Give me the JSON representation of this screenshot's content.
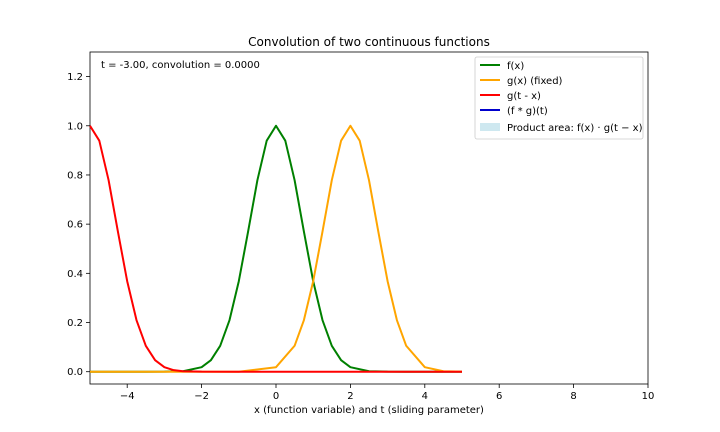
{
  "chart_data": {
    "type": "line",
    "title": "Convolution of two continuous functions",
    "xlabel": "x (function variable) and t (sliding parameter)",
    "ylabel": "",
    "xlim": [
      -5,
      10
    ],
    "ylim": [
      -0.05,
      1.3
    ],
    "xticks": [
      -4,
      -2,
      0,
      2,
      4,
      6,
      8,
      10
    ],
    "yticks": [
      0.0,
      0.2,
      0.4,
      0.6,
      0.8,
      1.0,
      1.2
    ],
    "xtick_labels": [
      "−4",
      "−2",
      "0",
      "2",
      "4",
      "6",
      "8",
      "10"
    ],
    "ytick_labels": [
      "0.0",
      "0.2",
      "0.4",
      "0.6",
      "0.8",
      "1.0",
      "1.2"
    ],
    "annotation": "t = -3.00, convolution = 0.0000",
    "legend_position": "top-right",
    "grid": false,
    "series": [
      {
        "name": "f(x)",
        "color": "#008000",
        "x": [
          -5,
          -4.5,
          -4,
          -3.5,
          -3,
          -2.5,
          -2,
          -1.75,
          -1.5,
          -1.25,
          -1,
          -0.75,
          -0.5,
          -0.25,
          0,
          0.25,
          0.5,
          0.75,
          1,
          1.25,
          1.5,
          1.75,
          2,
          2.5,
          3,
          3.5,
          4,
          4.5,
          5
        ],
        "y": [
          0,
          0,
          0,
          0,
          0.0001,
          0.0019,
          0.0183,
          0.0468,
          0.1054,
          0.2096,
          0.3679,
          0.5698,
          0.7788,
          0.9394,
          1,
          0.9394,
          0.7788,
          0.5698,
          0.3679,
          0.2096,
          0.1054,
          0.0468,
          0.0183,
          0.0019,
          0.0001,
          0,
          0,
          0,
          0
        ]
      },
      {
        "name": "g(x) (fixed)",
        "color": "#FFA500",
        "x": [
          -5,
          -4,
          -3,
          -2,
          -1,
          0,
          0.5,
          0.75,
          1,
          1.25,
          1.5,
          1.75,
          2,
          2.25,
          2.5,
          2.75,
          3,
          3.25,
          3.5,
          4,
          4.5,
          5
        ],
        "y": [
          0,
          0,
          0,
          0,
          0,
          0.0183,
          0.1054,
          0.2096,
          0.3679,
          0.5698,
          0.7788,
          0.9394,
          1,
          0.9394,
          0.7788,
          0.5698,
          0.3679,
          0.2096,
          0.1054,
          0.0183,
          0.0019,
          0.0001
        ]
      },
      {
        "name": "g(t - x)",
        "color": "#FF0000",
        "x": [
          -5,
          -4.75,
          -4.5,
          -4.25,
          -4,
          -3.75,
          -3.5,
          -3.25,
          -3,
          -2.75,
          -2.5,
          -2,
          -1,
          0,
          1,
          2,
          3,
          4,
          5
        ],
        "y": [
          1,
          0.9394,
          0.7788,
          0.5698,
          0.3679,
          0.2096,
          0.1054,
          0.0468,
          0.0183,
          0.0063,
          0.0019,
          0.0001,
          0,
          0,
          0,
          0,
          0,
          0,
          0
        ]
      },
      {
        "name": "(f * g)(t)",
        "color": "#0000CD",
        "x": [],
        "y": []
      }
    ],
    "product_area": {
      "name": "Product area: f(x) · g(t − x)",
      "color": "#ADD8E6"
    }
  }
}
